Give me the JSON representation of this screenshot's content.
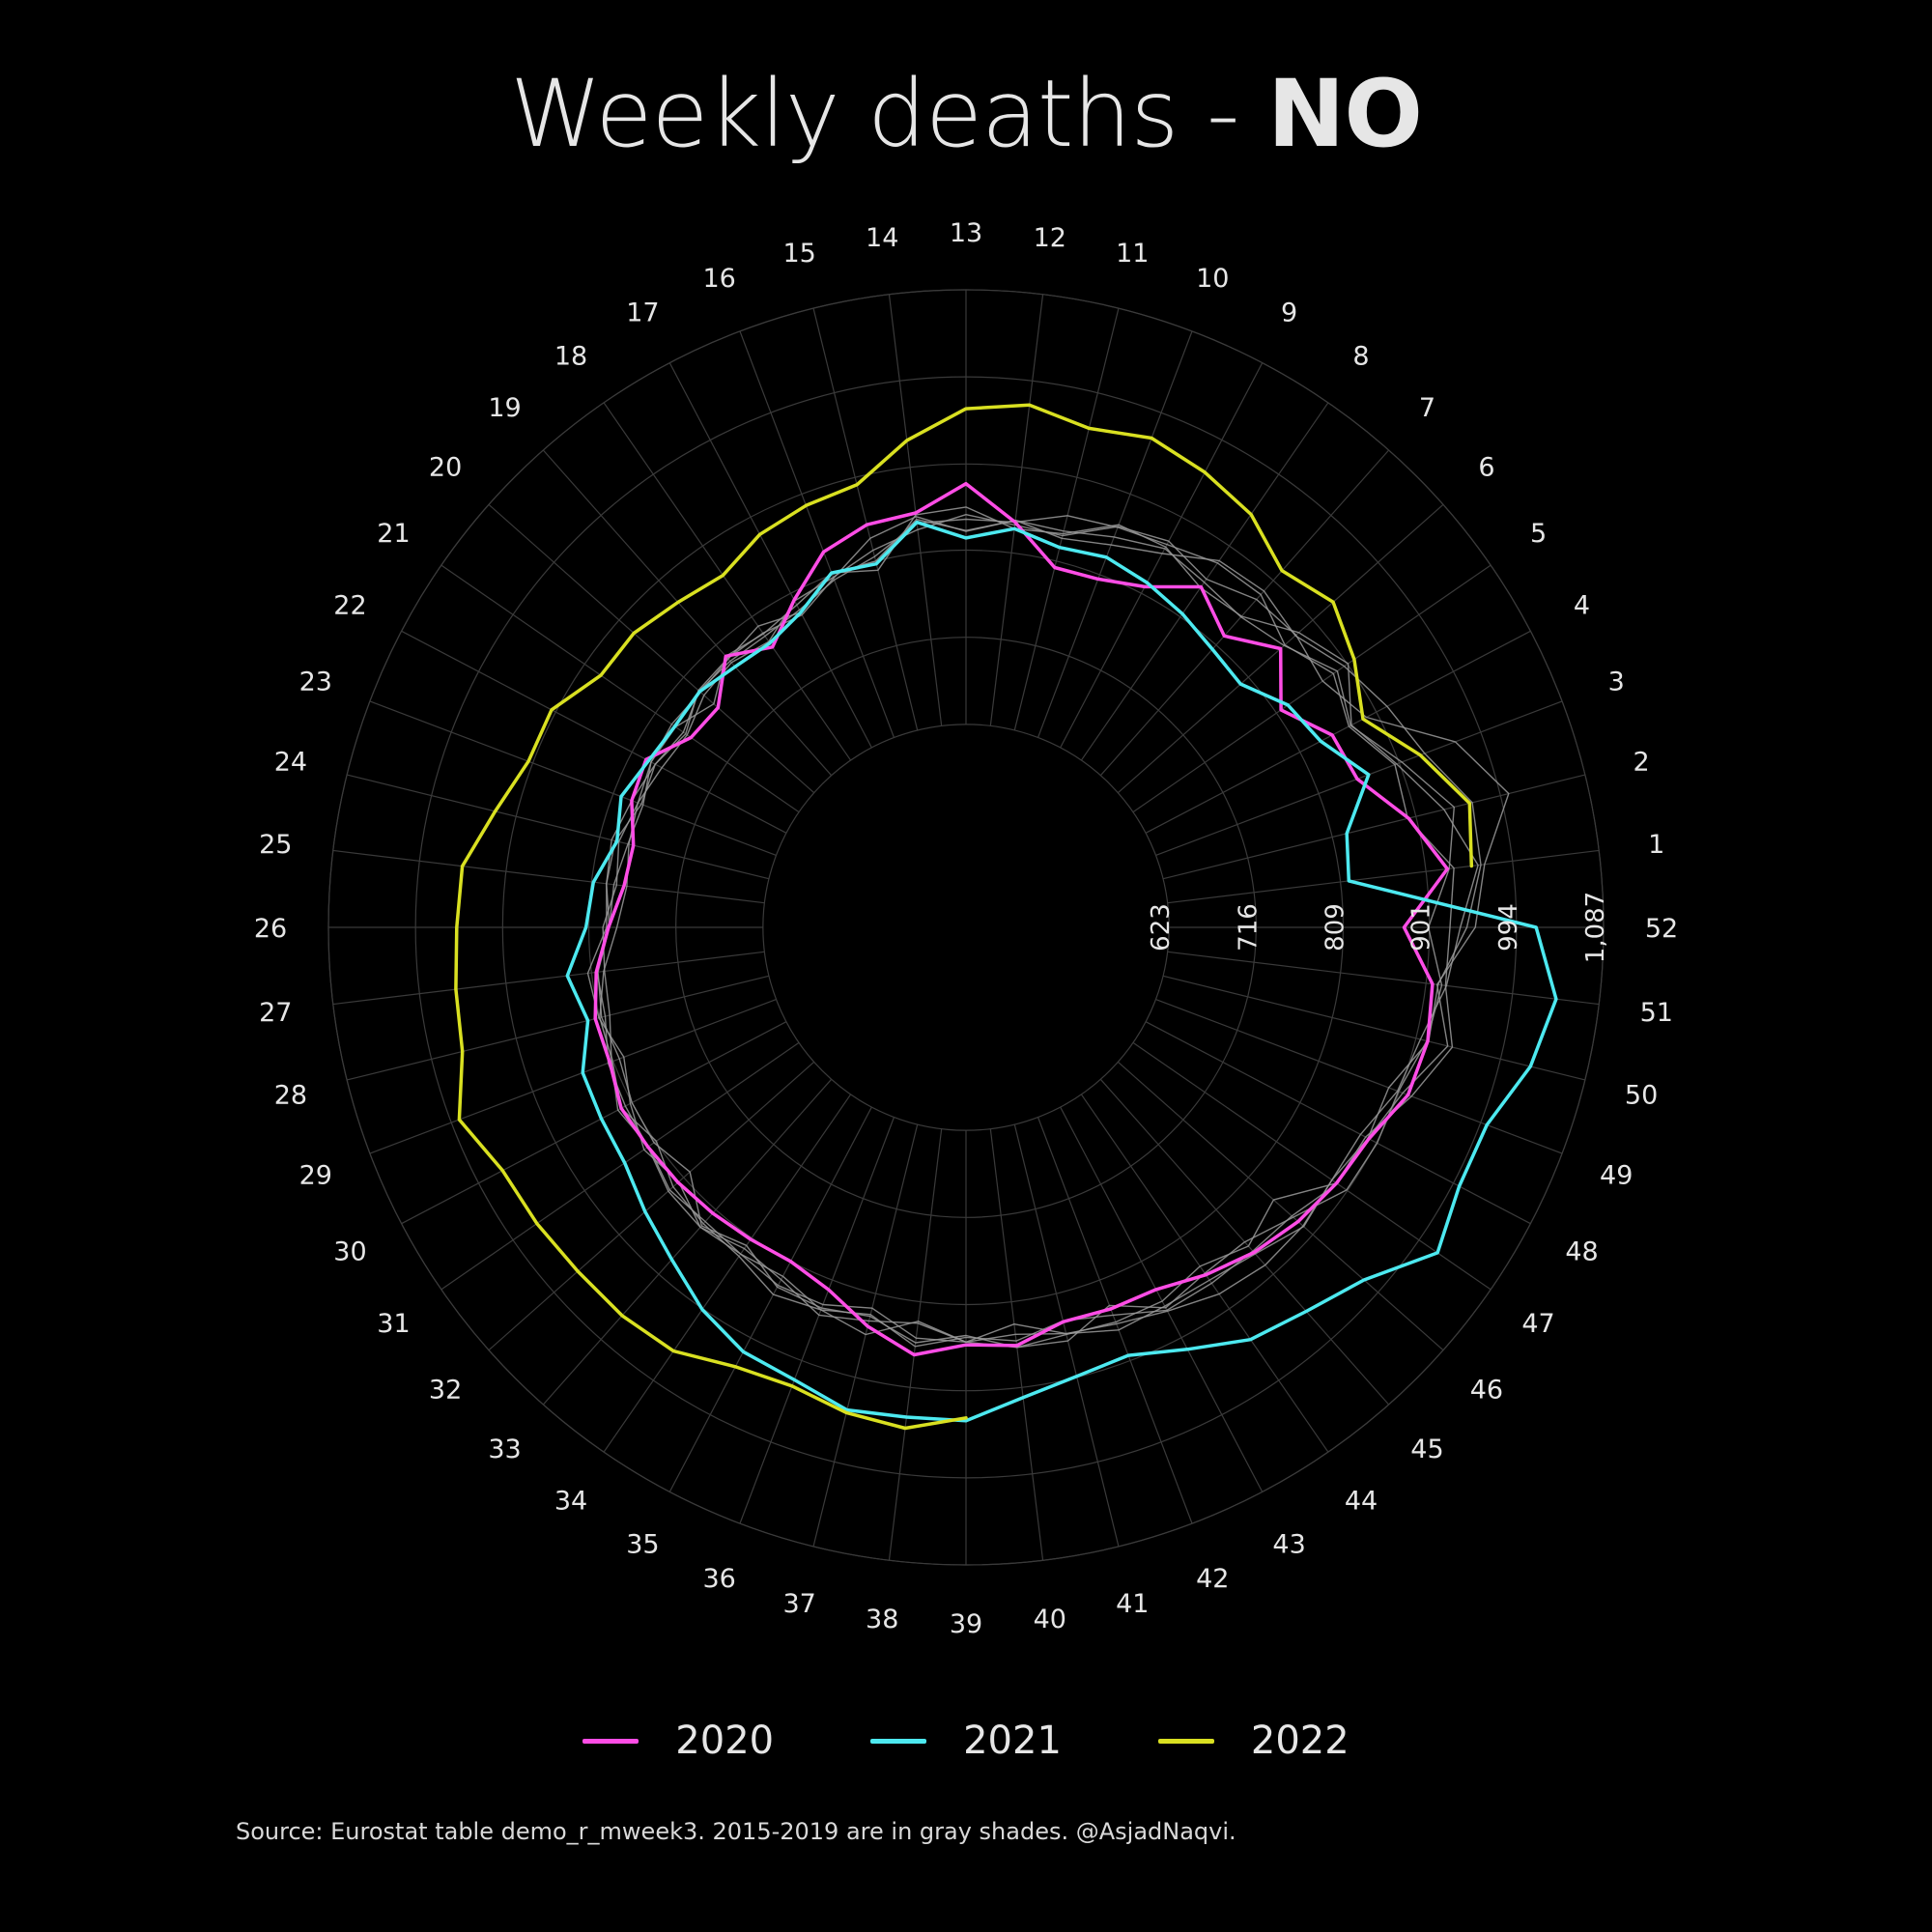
{
  "header": {
    "title_prefix": "Weekly deaths - ",
    "title_country": "NO"
  },
  "footer": {
    "source": "Source: Eurostat table demo_r_mweek3. 2015-2019 are in gray shades. @AsjadNaqvi."
  },
  "legend": [
    {
      "label": "2020",
      "color": "#ff4de6"
    },
    {
      "label": "2021",
      "color": "#4de9f0"
    },
    {
      "label": "2022",
      "color": "#d9e021"
    }
  ],
  "chart_data": {
    "type": "line",
    "coordinate_system": "polar",
    "angular_axis": {
      "categories": [
        1,
        2,
        3,
        4,
        5,
        6,
        7,
        8,
        9,
        10,
        11,
        12,
        13,
        14,
        15,
        16,
        17,
        18,
        19,
        20,
        21,
        22,
        23,
        24,
        25,
        26,
        27,
        28,
        29,
        30,
        31,
        32,
        33,
        34,
        35,
        36,
        37,
        38,
        39,
        40,
        41,
        42,
        43,
        44,
        45,
        46,
        47,
        48,
        49,
        50,
        51,
        52
      ]
    },
    "radial_axis": {
      "tick_labels": [
        "623",
        "716",
        "809",
        "901",
        "994",
        "1,087"
      ],
      "ticks": [
        623,
        716,
        809,
        901,
        994,
        1087
      ],
      "range": [
        530,
        1087
      ]
    },
    "grid": true,
    "legend_position": "bottom",
    "background": "#000000",
    "series": [
      {
        "name": "2020",
        "color": "#ff4de6",
        "width": 3.5,
        "values": [
          924,
          893,
          853,
          848,
          815,
          855,
          822,
          848,
          817,
          804,
          802,
          842,
          880,
          852,
          849,
          835,
          801,
          770,
          793,
          760,
          763,
          792,
          788,
          772,
          774,
          788,
          804,
          814,
          813,
          822,
          819,
          817,
          814,
          811,
          809,
          820,
          845,
          866,
          852,
          856,
          840,
          842,
          843,
          857,
          870,
          880,
          887,
          892,
          911,
          914,
          908,
          874
        ]
      },
      {
        "name": "2021",
        "color": "#4de9f0",
        "width": 3.5,
        "values": [
          818,
          825,
          866,
          834,
          824,
          798,
          803,
          813,
          822,
          829,
          824,
          835,
          822,
          842,
          806,
          811,
          786,
          775,
          778,
          786,
          784,
          789,
          800,
          790,
          807,
          812,
          835,
          822,
          844,
          846,
          849,
          864,
          880,
          902,
          918,
          923,
          937,
          933,
          933,
          912,
          900,
          895,
          915,
          941,
          954,
          974,
          1018,
          1001,
          1001,
          1027,
          1041,
          1015
        ]
      },
      {
        "name": "2022",
        "color": "#d9e021",
        "width": 3.5,
        "values": [
          950,
          960,
          925,
          885,
          910,
          930,
          915,
          942,
          955,
          965,
          955,
          968,
          960,
          930,
          893,
          888,
          880,
          863,
          870,
          880,
          880,
          906,
          906,
          924,
          948,
          950,
          955,
          960,
          985,
          965,
          963,
          960,
          960,
          956,
          936,
          930,
          940,
          945,
          930
        ]
      },
      {
        "name": "",
        "color": "#9a9a9a",
        "width": 1.4,
        "values": [
          931,
          892,
          896,
          868,
          883,
          861,
          881,
          879,
          868,
          863,
          859,
          842,
          842,
          841,
          814,
          803,
          789,
          784,
          786,
          787,
          773,
          781,
          788,
          796,
          793,
          790,
          813,
          810,
          797,
          811,
          824,
          816,
          834,
          830,
          838,
          837,
          825,
          848,
          849,
          858,
          854,
          857,
          857,
          846,
          861,
          845,
          887,
          888,
          915,
          941,
          922,
          923
        ]
      },
      {
        "name": "",
        "color": "#9a9a9a",
        "width": 1.4,
        "values": [
          926,
          943,
          904,
          870,
          888,
          860,
          849,
          854,
          863,
          852,
          842,
          844,
          829,
          848,
          834,
          805,
          783,
          788,
          790,
          788,
          770,
          781,
          777,
          792,
          793,
          787,
          802,
          807,
          802,
          809,
          811,
          800,
          832,
          819,
          840,
          841,
          834,
          853,
          842,
          858,
          861,
          838,
          865,
          855,
          855,
          873,
          900,
          902,
          900,
          913,
          918,
          900
        ]
      },
      {
        "name": "",
        "color": "#9a9a9a",
        "width": 1.4,
        "values": [
          957,
          932,
          898,
          871,
          902,
          881,
          850,
          847,
          865,
          866,
          839,
          835,
          855,
          850,
          799,
          811,
          795,
          787,
          793,
          766,
          783,
          786,
          781,
          788,
          782,
          794,
          795,
          798,
          811,
          826,
          818,
          829,
          826,
          830,
          827,
          843,
          854,
          830,
          849,
          833,
          853,
          866,
          863,
          864,
          872,
          888,
          881,
          882,
          899,
          906,
          923,
          934
        ]
      },
      {
        "name": "",
        "color": "#9a9a9a",
        "width": 1.4,
        "values": [
          960,
          963,
          930,
          914,
          897,
          876,
          886,
          882,
          857,
          843,
          834,
          844,
          830,
          845,
          809,
          810,
          786,
          797,
          789,
          785,
          788,
          786,
          775,
          778,
          785,
          787,
          803,
          803,
          815,
          817,
          819,
          831,
          834,
          823,
          831,
          849,
          839,
          832,
          849,
          844,
          853,
          859,
          869,
          882,
          888,
          887,
          881,
          891,
          889,
          915,
          914,
          941
        ]
      },
      {
        "name": "",
        "color": "#9a9a9a",
        "width": 1.4,
        "values": [
          964,
          1003,
          965,
          889,
          869,
          877,
          874,
          858,
          872,
          864,
          837,
          839,
          847,
          834,
          821,
          806,
          800,
          777,
          784,
          780,
          768,
          773,
          781,
          777,
          771,
          779,
          796,
          809,
          810,
          822,
          808,
          824,
          829,
          833,
          849,
          843,
          832,
          857,
          844,
          851,
          839,
          849,
          868,
          868,
          868,
          871,
          888,
          891,
          905,
          936,
          913,
          950
        ]
      }
    ]
  }
}
